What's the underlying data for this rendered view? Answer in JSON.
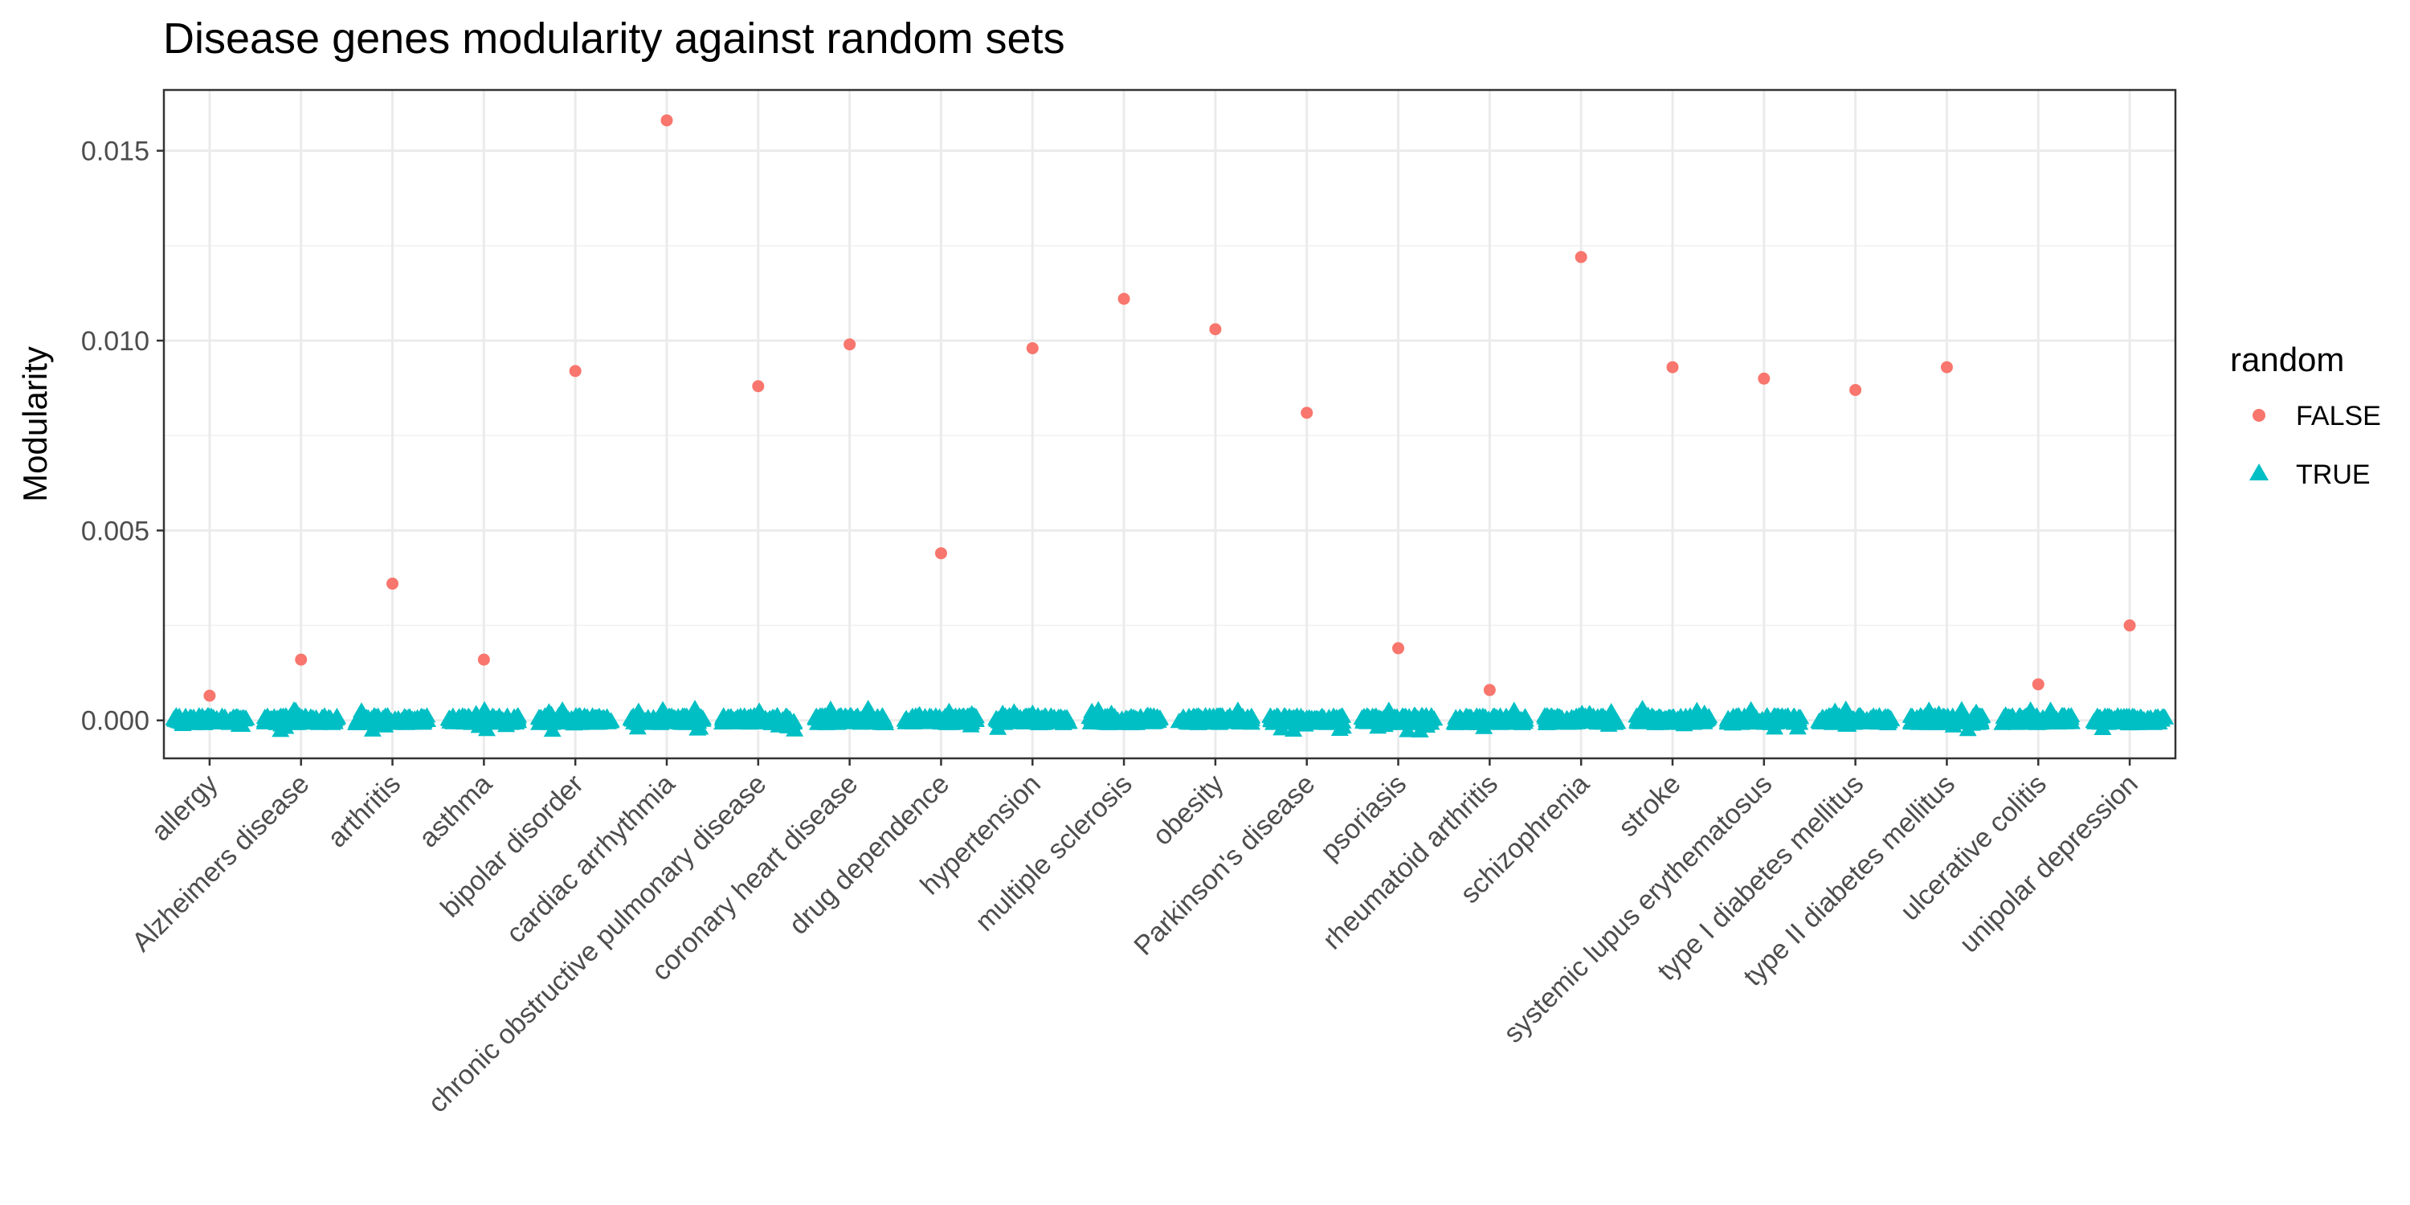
{
  "chart_data": {
    "type": "scatter",
    "title": "Disease genes modularity against random sets",
    "xlabel": "",
    "ylabel": "Modularity",
    "ylim": [
      -0.001,
      0.0166
    ],
    "yticks": [
      0.0,
      0.005,
      0.01,
      0.015
    ],
    "ytick_labels": [
      "0.000",
      "0.005",
      "0.010",
      "0.015"
    ],
    "grid": true,
    "legend": {
      "title": "random",
      "placement": "right",
      "entries": [
        {
          "label": "FALSE",
          "shape": "circle",
          "color": "#F8766D"
        },
        {
          "label": "TRUE",
          "shape": "triangle",
          "color": "#00BFC4"
        }
      ]
    },
    "categories": [
      "allergy",
      "Alzheimers disease",
      "arthritis",
      "asthma",
      "bipolar disorder",
      "cardiac arrhythmia",
      "chronic obstructive pulmonary disease",
      "coronary heart disease",
      "drug dependence",
      "hypertension",
      "multiple sclerosis",
      "obesity",
      "Parkinson's disease",
      "psoriasis",
      "rheumatoid arthritis",
      "schizophrenia",
      "stroke",
      "systemic lupus erythematosus",
      "type I diabetes mellitus",
      "type II diabetes mellitus",
      "ulcerative colitis",
      "unipolar depression"
    ],
    "series": [
      {
        "name": "FALSE",
        "color": "#F8766D",
        "shape": "circle",
        "values": [
          0.00065,
          0.0016,
          0.0036,
          0.0016,
          0.0092,
          0.0158,
          0.0088,
          0.0099,
          0.0044,
          0.0098,
          0.0111,
          0.0103,
          0.0081,
          0.0019,
          0.0008,
          0.0122,
          0.0093,
          0.009,
          0.0087,
          0.0093,
          0.00095,
          0.0025
        ]
      },
      {
        "name": "TRUE",
        "color": "#00BFC4",
        "shape": "triangle",
        "value_range": [
          -0.0003,
          0.0003
        ],
        "typical_value": 0.0,
        "points_per_category": 100
      }
    ]
  }
}
